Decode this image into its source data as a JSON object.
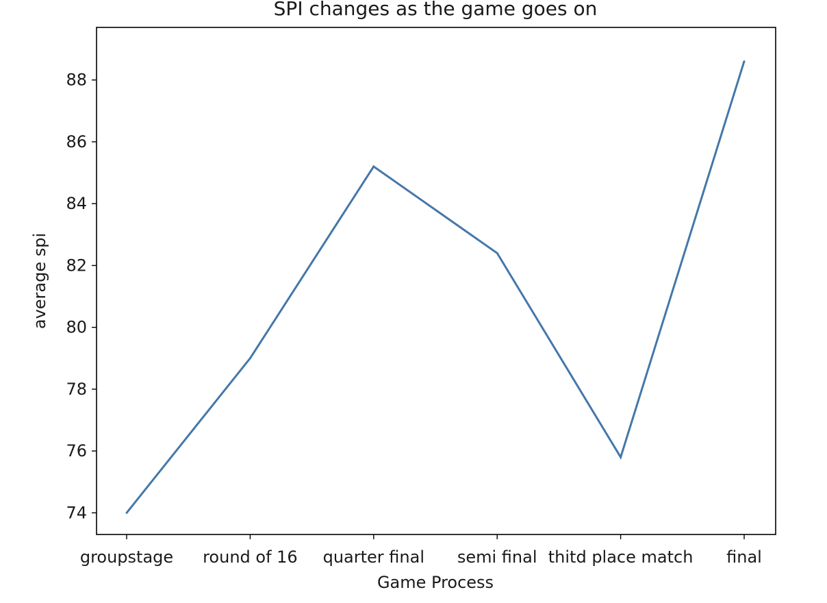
{
  "chart_data": {
    "type": "line",
    "title": "SPI changes as the game goes on",
    "xlabel": "Game Process",
    "ylabel": "average spi",
    "categories": [
      "groupstage",
      "round of 16",
      "quarter final",
      "semi final",
      "thitd place match",
      "final"
    ],
    "series": [
      {
        "values": [
          74.0,
          79.0,
          85.2,
          82.4,
          75.8,
          88.6
        ]
      }
    ],
    "ylim": [
      73.3,
      89.7
    ],
    "yticks": [
      74,
      76,
      78,
      80,
      82,
      84,
      86,
      88
    ],
    "grid": false,
    "line_color": "#4477aa"
  }
}
